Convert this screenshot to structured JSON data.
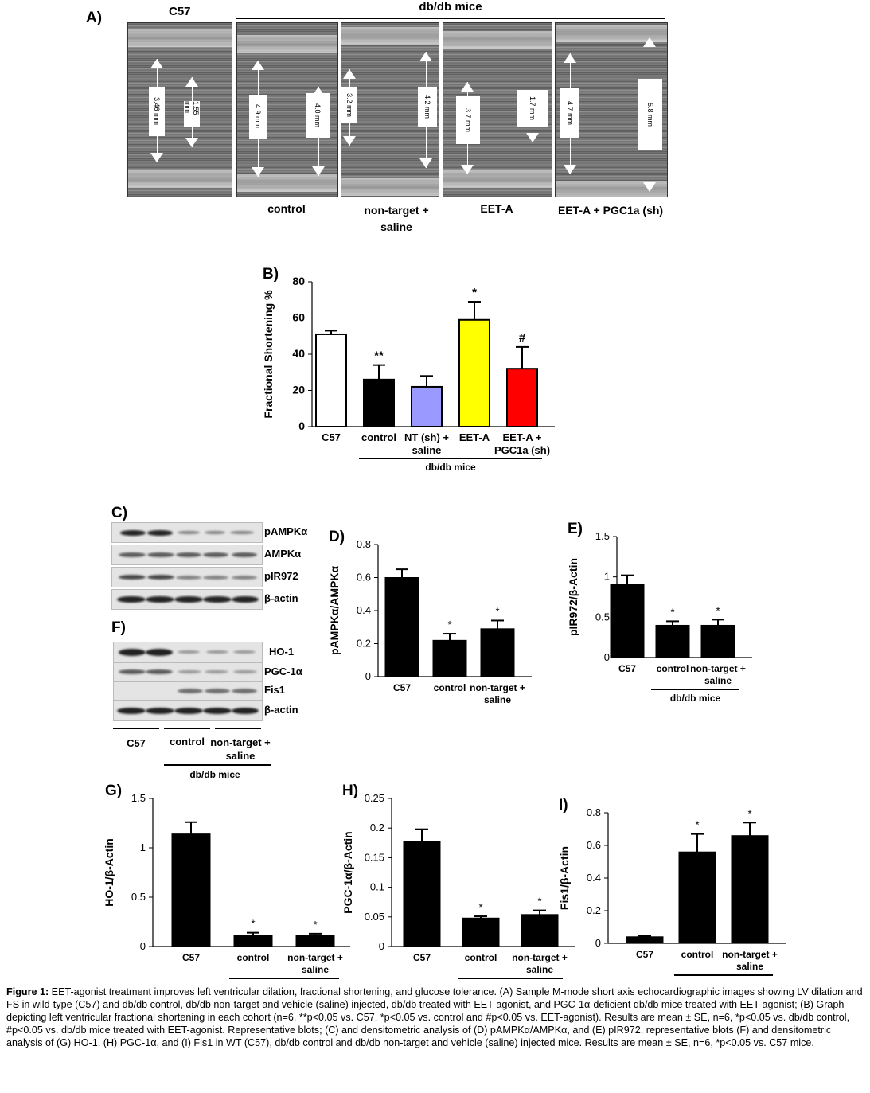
{
  "panelA": {
    "label": "A)",
    "c57_header": "C57",
    "dbdb_header": "db/db mice",
    "images": [
      {
        "label": "",
        "measures": [
          "3.46 mm",
          "1.55 mm"
        ]
      },
      {
        "label": "control",
        "measures": [
          "4.9 mm",
          "4.0 mm"
        ]
      },
      {
        "label": "non-target + saline",
        "measures": [
          "3.2 mm",
          "4.2 mm"
        ]
      },
      {
        "label": "EET-A",
        "measures": [
          "3.7 mm",
          "1.7 mm"
        ]
      },
      {
        "label": "EET-A + PGC1a (sh)",
        "measures": [
          "4.7 mm",
          "5.8 mm"
        ]
      }
    ]
  },
  "panelC": {
    "label": "C)",
    "rows": [
      "pAMPKα",
      "AMPKα",
      "pIR972",
      "β-actin"
    ]
  },
  "panelF": {
    "label": "F)",
    "rows": [
      "HO-1",
      "PGC-1α",
      "Fis1",
      "β-actin"
    ],
    "groups": [
      "C57",
      "control",
      "non-target + saline"
    ],
    "group_label": "db/db mice"
  },
  "colors": {
    "c57": "#ffffff",
    "control": "#000000",
    "nt": "#9999ff",
    "eet": "#ffff00",
    "pgc": "#ff0000",
    "bar": "#000000"
  },
  "chart_data": [
    {
      "id": "B",
      "label": "B)",
      "type": "bar",
      "ylabel": "Fractional Shortening %",
      "ylim": [
        0,
        80
      ],
      "yticks": [
        "0",
        "20",
        "40",
        "60",
        "80"
      ],
      "categories": [
        "C57",
        "control",
        "NT (sh) + saline",
        "EET-A",
        "EET-A + PGC1a (sh)"
      ],
      "values": [
        51,
        26,
        22,
        59,
        32
      ],
      "errors": [
        2,
        8,
        6,
        10,
        12
      ],
      "sig": [
        "",
        "**",
        "",
        "*",
        "#"
      ],
      "group_label": "db/db mice"
    },
    {
      "id": "D",
      "label": "D)",
      "type": "bar",
      "ylabel": "pAMPKα/AMPKα",
      "ylim": [
        0,
        0.8
      ],
      "yticks": [
        "0",
        "0.2",
        "0.4",
        "0.6",
        "0.8"
      ],
      "categories": [
        "C57",
        "control",
        "non-target + saline"
      ],
      "values": [
        0.6,
        0.22,
        0.29
      ],
      "errors": [
        0.05,
        0.04,
        0.05
      ],
      "sig": [
        "",
        "*",
        "*"
      ],
      "group_label": "db/db mice"
    },
    {
      "id": "E",
      "label": "E)",
      "type": "bar",
      "ylabel": "pIR972/β-Actin",
      "ylim": [
        0,
        1.5
      ],
      "yticks": [
        "0",
        "0.5",
        "1",
        "1.5"
      ],
      "categories": [
        "C57",
        "control",
        "non-target + saline"
      ],
      "values": [
        0.91,
        0.4,
        0.4
      ],
      "errors": [
        0.11,
        0.05,
        0.07
      ],
      "sig": [
        "",
        "*",
        "*"
      ],
      "group_label": "db/db mice"
    },
    {
      "id": "G",
      "label": "G)",
      "type": "bar",
      "ylabel": "HO-1/β-Actin",
      "ylim": [
        0,
        1.5
      ],
      "yticks": [
        "0",
        "0.5",
        "1",
        "1.5"
      ],
      "categories": [
        "C57",
        "control",
        "non-target + saline"
      ],
      "values": [
        1.14,
        0.11,
        0.11
      ],
      "errors": [
        0.12,
        0.03,
        0.02
      ],
      "sig": [
        "",
        "*",
        "*"
      ],
      "group_label": "db/db mice"
    },
    {
      "id": "H",
      "label": "H)",
      "type": "bar",
      "ylabel": "PGC-1α/β-Actin",
      "ylim": [
        0,
        0.25
      ],
      "yticks": [
        "0",
        "0.05",
        "0.1",
        "0.15",
        "0.2",
        "0.25"
      ],
      "categories": [
        "C57",
        "control",
        "non-target + saline"
      ],
      "values": [
        0.178,
        0.048,
        0.054
      ],
      "errors": [
        0.02,
        0.003,
        0.007
      ],
      "sig": [
        "",
        "*",
        "*"
      ],
      "group_label": "db/db mice"
    },
    {
      "id": "I",
      "label": "I)",
      "type": "bar",
      "ylabel": "Fis1/β-Actin",
      "ylim": [
        0,
        0.8
      ],
      "yticks": [
        "0",
        "0.2",
        "0.4",
        "0.6",
        "0.8"
      ],
      "categories": [
        "C57",
        "control",
        "non-target + saline"
      ],
      "values": [
        0.04,
        0.56,
        0.66
      ],
      "errors": [
        0.005,
        0.11,
        0.08
      ],
      "sig": [
        "",
        "*",
        "*"
      ],
      "group_label": "db/db mice"
    }
  ],
  "caption": {
    "title": "Figure 1:",
    "text": " EET-agonist treatment improves left ventricular dilation, fractional shortening, and glucose tolerance. (A) Sample M-mode short axis echocardiographic images showing LV dilation and FS in wild-type (C57) and db/db control, db/db non-target and vehicle (saline) injected, db/db treated with EET-agonist, and PGC-1α-deficient db/db mice treated with EET-agonist; (B) Graph depicting left ventricular fractional shortening in each cohort (n=6, **p<0.05 vs. C57, *p<0.05 vs. control and #p<0.05 vs. EET-agonist). Results are mean ± SE, n=6, *p<0.05 vs. db/db control, #p<0.05 vs. db/db mice treated with EET-agonist. Representative blots; (C) and densitometric analysis of (D) pAMPKα/AMPKα, and (E) pIR972, representative blots (F) and densitometric analysis of (G) HO-1, (H) PGC-1α, and (I) Fis1 in WT (C57), db/db control and db/db non-target and vehicle (saline) injected mice. Results are mean ± SE, n=6, *p<0.05 vs. C57 mice."
  }
}
